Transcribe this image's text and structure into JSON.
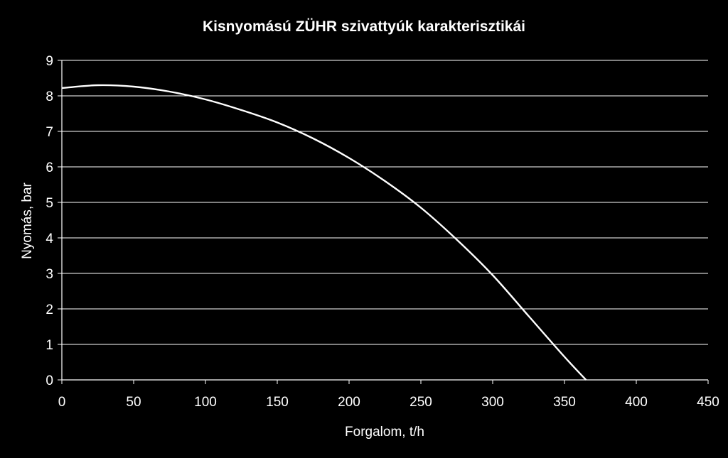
{
  "colors": {
    "background": "#000000",
    "foreground": "#ffffff",
    "grid": "#ffffff"
  },
  "chart_data": {
    "type": "line",
    "title": "Kisnyomású ZÜHR szivattyúk karakterisztikái",
    "xlabel": "Forgalom, t/h",
    "ylabel": "Nyomás, bar",
    "xlim": [
      0,
      450
    ],
    "ylim": [
      0,
      9
    ],
    "xticks": [
      "0",
      "50",
      "100",
      "150",
      "200",
      "250",
      "300",
      "350",
      "400",
      "450"
    ],
    "yticks": [
      "0",
      "1",
      "2",
      "3",
      "4",
      "5",
      "6",
      "7",
      "8",
      "9"
    ],
    "grid": "horizontal",
    "legend": "none",
    "series": [
      {
        "x": [
          0,
          25,
          50,
          75,
          100,
          125,
          150,
          175,
          200,
          225,
          250,
          275,
          300,
          325,
          350,
          365
        ],
        "y": [
          8.22,
          8.3,
          8.26,
          8.12,
          7.9,
          7.6,
          7.25,
          6.8,
          6.25,
          5.6,
          4.85,
          3.95,
          2.95,
          1.8,
          0.65,
          0.0
        ]
      }
    ]
  }
}
